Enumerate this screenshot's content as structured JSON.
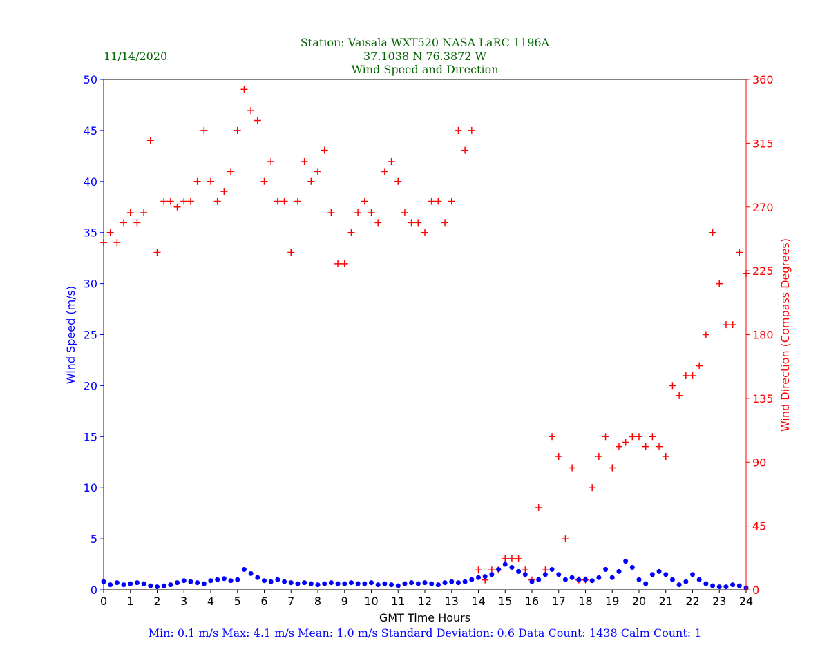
{
  "header": {
    "date": "11/14/2020",
    "station": "Station:  Vaisala WXT520  NASA LaRC 1196A",
    "location": "37.1038 N 76.3872 W",
    "title": "Wind Speed and Direction"
  },
  "stats": "Min: 0.1 m/s   Max: 4.1 m/s   Mean: 1.0 m/s  Standard Deviation: 0.6  Data Count: 1438  Calm Count:  1",
  "colors": {
    "speed": "#0000ff",
    "direction": "#ff0000",
    "title": "#006400"
  },
  "chart_data": {
    "type": "scatter",
    "title": "Wind Speed and Direction",
    "xlabel": "GMT Time Hours",
    "ylabel": "Wind Speed (m/s)",
    "y2label": "Wind Direction (Compass Degrees)",
    "xlim": [
      0,
      24
    ],
    "ylim": [
      0,
      50
    ],
    "y2lim": [
      0,
      360
    ],
    "xticks": [
      0,
      1,
      2,
      3,
      4,
      5,
      6,
      7,
      8,
      9,
      10,
      11,
      12,
      13,
      14,
      15,
      16,
      17,
      18,
      19,
      20,
      21,
      22,
      23,
      24
    ],
    "yticks": [
      0,
      5,
      10,
      15,
      20,
      25,
      30,
      35,
      40,
      45,
      50
    ],
    "y2ticks": [
      0,
      45,
      90,
      135,
      180,
      225,
      270,
      315,
      360
    ],
    "grid": false,
    "x": [
      0,
      0.25,
      0.5,
      0.75,
      1,
      1.25,
      1.5,
      1.75,
      2,
      2.25,
      2.5,
      2.75,
      3,
      3.25,
      3.5,
      3.75,
      4,
      4.25,
      4.5,
      4.75,
      5,
      5.25,
      5.5,
      5.75,
      6,
      6.25,
      6.5,
      6.75,
      7,
      7.25,
      7.5,
      7.75,
      8,
      8.25,
      8.5,
      8.75,
      9,
      9.25,
      9.5,
      9.75,
      10,
      10.25,
      10.5,
      10.75,
      11,
      11.25,
      11.5,
      11.75,
      12,
      12.25,
      12.5,
      12.75,
      13,
      13.25,
      13.5,
      13.75,
      14,
      14.25,
      14.5,
      14.75,
      15,
      15.25,
      15.5,
      15.75,
      16,
      16.25,
      16.5,
      16.75,
      17,
      17.25,
      17.5,
      17.75,
      18,
      18.25,
      18.5,
      18.75,
      19,
      19.25,
      19.5,
      19.75,
      20,
      20.25,
      20.5,
      20.75,
      21,
      21.25,
      21.5,
      21.75,
      22,
      22.25,
      22.5,
      22.75,
      23,
      23.25,
      23.5,
      23.75,
      24
    ],
    "series": [
      {
        "name": "Wind Speed (m/s)",
        "axis": "left",
        "marker": "dot",
        "values": [
          0.8,
          0.5,
          0.7,
          0.5,
          0.6,
          0.7,
          0.6,
          0.4,
          0.3,
          0.4,
          0.5,
          0.7,
          0.9,
          0.8,
          0.7,
          0.6,
          0.9,
          1.0,
          1.1,
          0.9,
          1.0,
          2.0,
          1.6,
          1.2,
          0.9,
          0.8,
          1.0,
          0.8,
          0.7,
          0.6,
          0.7,
          0.6,
          0.5,
          0.6,
          0.7,
          0.6,
          0.6,
          0.7,
          0.6,
          0.6,
          0.7,
          0.5,
          0.6,
          0.5,
          0.4,
          0.6,
          0.7,
          0.6,
          0.7,
          0.6,
          0.5,
          0.7,
          0.8,
          0.7,
          0.8,
          1.0,
          1.2,
          1.3,
          1.5,
          2.0,
          2.5,
          2.2,
          1.8,
          1.5,
          0.8,
          1.0,
          1.5,
          2.0,
          1.5,
          1.0,
          1.2,
          1.0,
          1.0,
          0.9,
          1.2,
          2.0,
          1.2,
          1.8,
          2.8,
          2.2,
          1.0,
          0.6,
          1.5,
          1.8,
          1.5,
          1.0,
          0.5,
          0.8,
          1.5,
          1.0,
          0.6,
          0.4,
          0.3,
          0.3,
          0.5,
          0.4,
          0.2
        ]
      },
      {
        "name": "Wind Direction (Compass Degrees)",
        "axis": "right",
        "marker": "plus",
        "values": [
          245,
          252,
          245,
          259,
          266,
          259,
          266,
          317,
          238,
          274,
          274,
          270,
          274,
          274,
          288,
          324,
          288,
          274,
          281,
          295,
          324,
          353,
          338,
          331,
          288,
          302,
          274,
          274,
          238,
          274,
          302,
          288,
          295,
          310,
          266,
          230,
          230,
          252,
          266,
          274,
          266,
          259,
          295,
          302,
          288,
          266,
          259,
          259,
          252,
          274,
          274,
          259,
          274,
          324,
          310,
          324,
          14,
          7,
          14,
          14,
          22,
          22,
          22,
          14,
          7,
          58,
          14,
          108,
          94,
          36,
          86,
          7,
          7,
          72,
          94,
          108,
          86,
          101,
          104,
          108,
          108,
          101,
          108,
          101,
          94,
          144,
          137,
          151,
          151,
          158,
          180,
          252,
          216,
          187,
          187,
          238,
          223
        ]
      }
    ]
  }
}
